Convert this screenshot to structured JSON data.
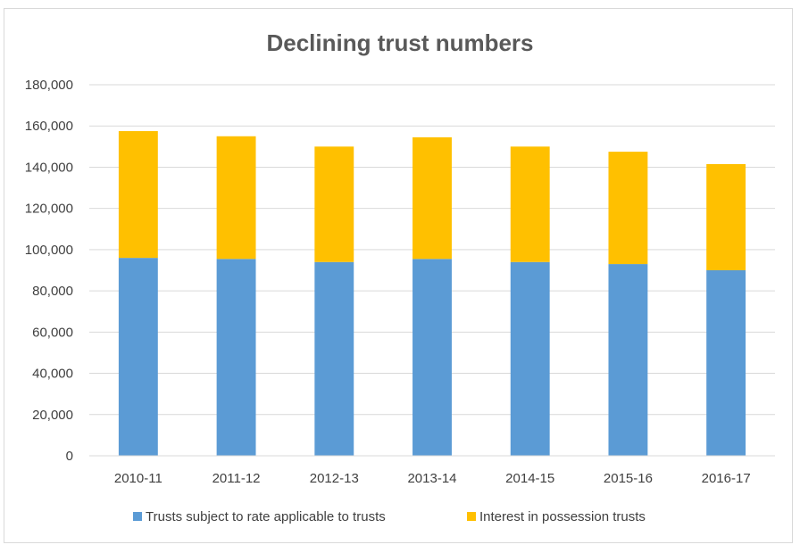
{
  "chart_data": {
    "type": "bar",
    "stacked": true,
    "title": "Declining trust numbers",
    "xlabel": "",
    "ylabel": "",
    "categories": [
      "2010-11",
      "2011-12",
      "2012-13",
      "2013-14",
      "2014-15",
      "2015-16",
      "2016-17"
    ],
    "series": [
      {
        "name": "Trusts subject to rate applicable to trusts",
        "color": "#5b9bd5",
        "values": [
          96000,
          95500,
          94000,
          95500,
          94000,
          93000,
          90000
        ]
      },
      {
        "name": "Interest in possession trusts",
        "color": "#ffc000",
        "values": [
          61500,
          59500,
          56000,
          59000,
          56000,
          54500,
          51500
        ]
      }
    ],
    "ylim": [
      0,
      180000
    ],
    "yticks": [
      0,
      20000,
      40000,
      60000,
      80000,
      100000,
      120000,
      140000,
      160000,
      180000
    ],
    "ytick_labels": [
      "0",
      "20,000",
      "40,000",
      "60,000",
      "80,000",
      "100,000",
      "120,000",
      "140,000",
      "160,000",
      "180,000"
    ],
    "grid": true,
    "legend_position": "bottom",
    "gridline_color": "#d9d9d9"
  }
}
